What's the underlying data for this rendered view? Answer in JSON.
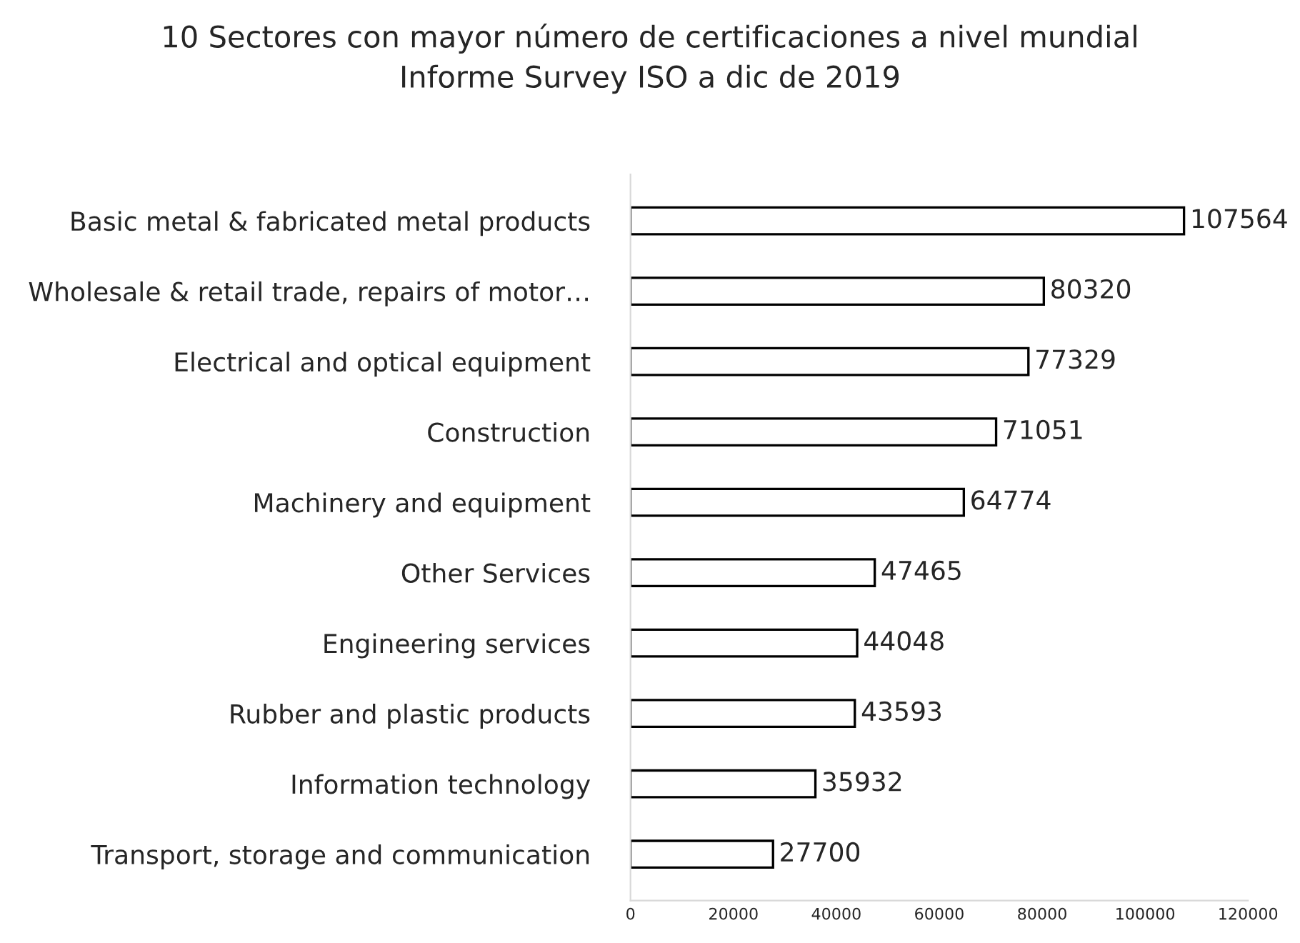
{
  "chart_data": {
    "type": "bar",
    "orientation": "horizontal",
    "title": "10 Sectores con mayor número de certificaciones a nivel mundial\nInforme Survey ISO a dic de 2019",
    "categories": [
      "Basic metal & fabricated metal products",
      "Wholesale & retail trade, repairs of motor…",
      "Electrical and optical equipment",
      "Construction",
      "Machinery and equipment",
      "Other Services",
      "Engineering services",
      "Rubber and plastic products",
      "Information technology",
      "Transport, storage and communication"
    ],
    "values": [
      107564,
      80320,
      77329,
      71051,
      64774,
      47465,
      44048,
      43593,
      35932,
      27700
    ],
    "color": "#ffffff",
    "xlim": [
      0,
      120000
    ],
    "xticks": [
      0,
      20000,
      40000,
      60000,
      80000,
      100000,
      120000
    ],
    "data_labels": true,
    "grid": false,
    "legend": false
  }
}
